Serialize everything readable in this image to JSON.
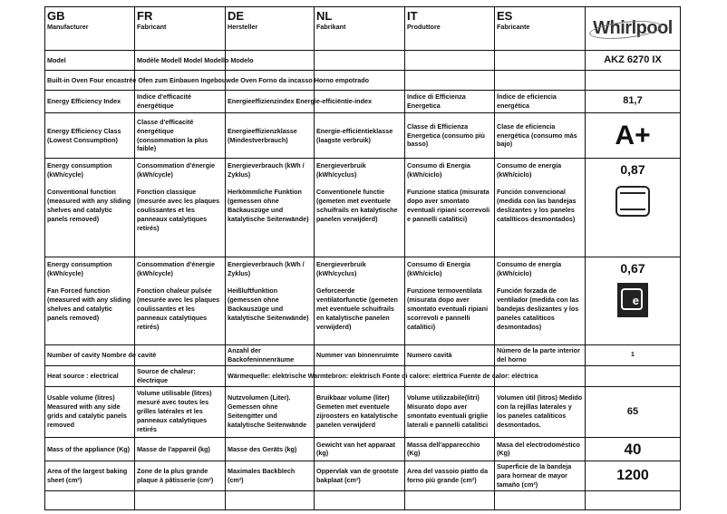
{
  "header": {
    "columns": [
      {
        "code": "GB",
        "label": "Manufacturer"
      },
      {
        "code": "FR",
        "label": "Fabricant"
      },
      {
        "code": "DE",
        "label": "Hersteller"
      },
      {
        "code": "NL",
        "label": "Fabrikant"
      },
      {
        "code": "IT",
        "label": "Produttore"
      },
      {
        "code": "ES",
        "label": "Fabricante"
      }
    ],
    "logo": "Whirlpool"
  },
  "rows": [
    {
      "cells": [
        [
          "Model"
        ],
        [
          "Modèle Modell Model Modello Modelo"
        ],
        [],
        [],
        [],
        []
      ],
      "value": "AKZ 6270 IX"
    },
    {
      "cells": [
        [
          "Built-in Oven Four encastrée Ofen zum Einbauen Ingebouwde Oven Forno da incasso Horno empotrado"
        ],
        [],
        [],
        [],
        [],
        []
      ],
      "value": ""
    },
    {
      "cells": [
        [
          "Energy Efficiency Index"
        ],
        [
          "Indice d'efficacité énergétique"
        ],
        [
          "Energieeffizienzindex Energie-efficiëntie-index"
        ],
        [],
        [
          "Indice di Efficienza Energetica"
        ],
        [
          "Índice de eficiencia energética"
        ]
      ],
      "value": "81,7"
    },
    {
      "cells": [
        [
          "Energy Efficiency Class (Lowest Consumption)"
        ],
        [
          "Classe d'efficacité énergétique (consommation la plus faible)"
        ],
        [
          "Energieeffizienzklasse (Mindestverbrauch)"
        ],
        [
          "Energie-efficiëntieklasse (laagste verbruik)"
        ],
        [
          "Classe di Efficienza Energetica (consumo più basso)"
        ],
        [
          "Clase de eficiencia energética (consumo más bajo)"
        ]
      ],
      "value": "A+"
    },
    {
      "cells": [
        [
          "Energy consumption (kWh/cycle)",
          "Conventional function (measured with any sliding shelves and catalytic panels removed)"
        ],
        [
          "Consommation d'énergie (kWh/cycle)",
          "Fonction classique (mesurée avec les plaques coulissantes et les panneaux catalytiques retirés)"
        ],
        [
          "Energieverbrauch (kWh / Zyklus)",
          "Herkömmliche Funktion (gemessen ohne Backauszüge und katalytische Seitenwände)"
        ],
        [
          "Energieverbruik (kWh/cyclus)",
          "Conventionele functie (gemeten met eventuele schuifrails en katalytische panelen verwijderd)"
        ],
        [
          "Consumo di Energia (kWh/ciclo)",
          "Funzione statica (misurata dopo aver smontato eventuali ripiani scorrevoli e pannelli catalitici)"
        ],
        [
          "Consumo de energía (kWh/ciclo)",
          "Función convencional (medida con las bandejas deslizantes y los paneles catalíticos desmontados)"
        ]
      ],
      "value": "0,87",
      "icon": "conventional-oven-icon"
    },
    {
      "cells": [
        [
          "Energy consumption (kWh/cycle)",
          "Fan Forced function (measured with any sliding shelves and catalytic panels removed)"
        ],
        [
          "Consommation d'énergie (kWh/cycle)",
          "Fonction chaleur pulsée (mesurée avec les plaques coulissantes et les panneaux catalytiques retirés)"
        ],
        [
          "Energieverbrauch (kWh / Zyklus)",
          "Heißluftfunktion (gemessen ohne Backauszüge und katalytische Seitenwände)"
        ],
        [
          "Energieverbruik (kWh/cyclus)",
          "Geforceerde ventilatorfunctie (gemeten met eventuele schuifrails en katalytische panelen verwijderd)"
        ],
        [
          "Consumo di Energia (kWh/ciclo)",
          "Funzione termoventilata (misurata dopo aver smontato eventuali ripiani scorrevoli e pannelli catalitici)"
        ],
        [
          "Consumo de energía (kWh/ciclo)",
          "Función forzada de ventilador (medida con las bandejas deslizantes y los paneles catalíticos desmontados)"
        ]
      ],
      "value": "0,67",
      "icon": "fan-forced-eco-icon"
    },
    {
      "cells": [
        [
          "Number of cavity Nombre de cavité"
        ],
        [],
        [
          "Anzahl der Backofeninnenräume"
        ],
        [
          "Nummer van binnenruimte"
        ],
        [
          "Numero cavità"
        ],
        [
          "Número de la parte interior del horno"
        ]
      ],
      "value": "1"
    },
    {
      "cells": [
        [
          "Heat source : electrical"
        ],
        [
          "Source de chaleur: électrique"
        ],
        [
          "Wärmequelle: elektrische Warmtebron: elektrisch Fonte di calore: elettrica Fuente de calor: eléctrica"
        ],
        [],
        [],
        []
      ],
      "value": ""
    },
    {
      "cells": [
        [
          "Usable volume (litres) Measured with any side grids and catalytic panels removed"
        ],
        [
          "Volume utilisable (litres) mesuré avec toutes les grilles latérales et les panneaux catalytiques retirés"
        ],
        [
          "Nutzvolumen (Liter). Gemessen ohne Seitengitter und katalytische Seitenwände"
        ],
        [
          "Bruikbaar volume (liter) Gemeten met eventuele zijroosters en katalytische panelen verwijderd"
        ],
        [
          "Volume utilizzabile(litri) Misurato dopo aver smontato eventuali griglie laterali e pannelli catalitici"
        ],
        [
          "Volumen útil (litros) Medido con la rejillas laterales y los paneles catalíticos desmontados."
        ]
      ],
      "value": "65"
    },
    {
      "cells": [
        [
          "Mass of the appliance (Kg)"
        ],
        [
          "Masse de l'appareil (kg)"
        ],
        [
          "Masse des Geräts (kg)"
        ],
        [
          "Gewicht van het apparaat (kg)"
        ],
        [
          "Massa dell'apparecchio (Kg)"
        ],
        [
          "Masa del electrodoméstico (Kg)"
        ]
      ],
      "value": "40"
    },
    {
      "cells": [
        [
          "Area of the largest baking sheet (cm²)"
        ],
        [
          "Zone de la plus grande plaque à pâtisserie (cm²)"
        ],
        [
          "Maximales Backblech (cm²)"
        ],
        [
          "Oppervlak van de grootste bakplaat (cm²)"
        ],
        [
          "Area del vassoio piatto da forno più grande (cm²)"
        ],
        [
          "Superficie de la bandeja para hornear de mayor tamaño (cm²)"
        ]
      ],
      "value": "1200"
    },
    {
      "cells": [
        [],
        [],
        [],
        [],
        [],
        []
      ],
      "value": ""
    }
  ]
}
